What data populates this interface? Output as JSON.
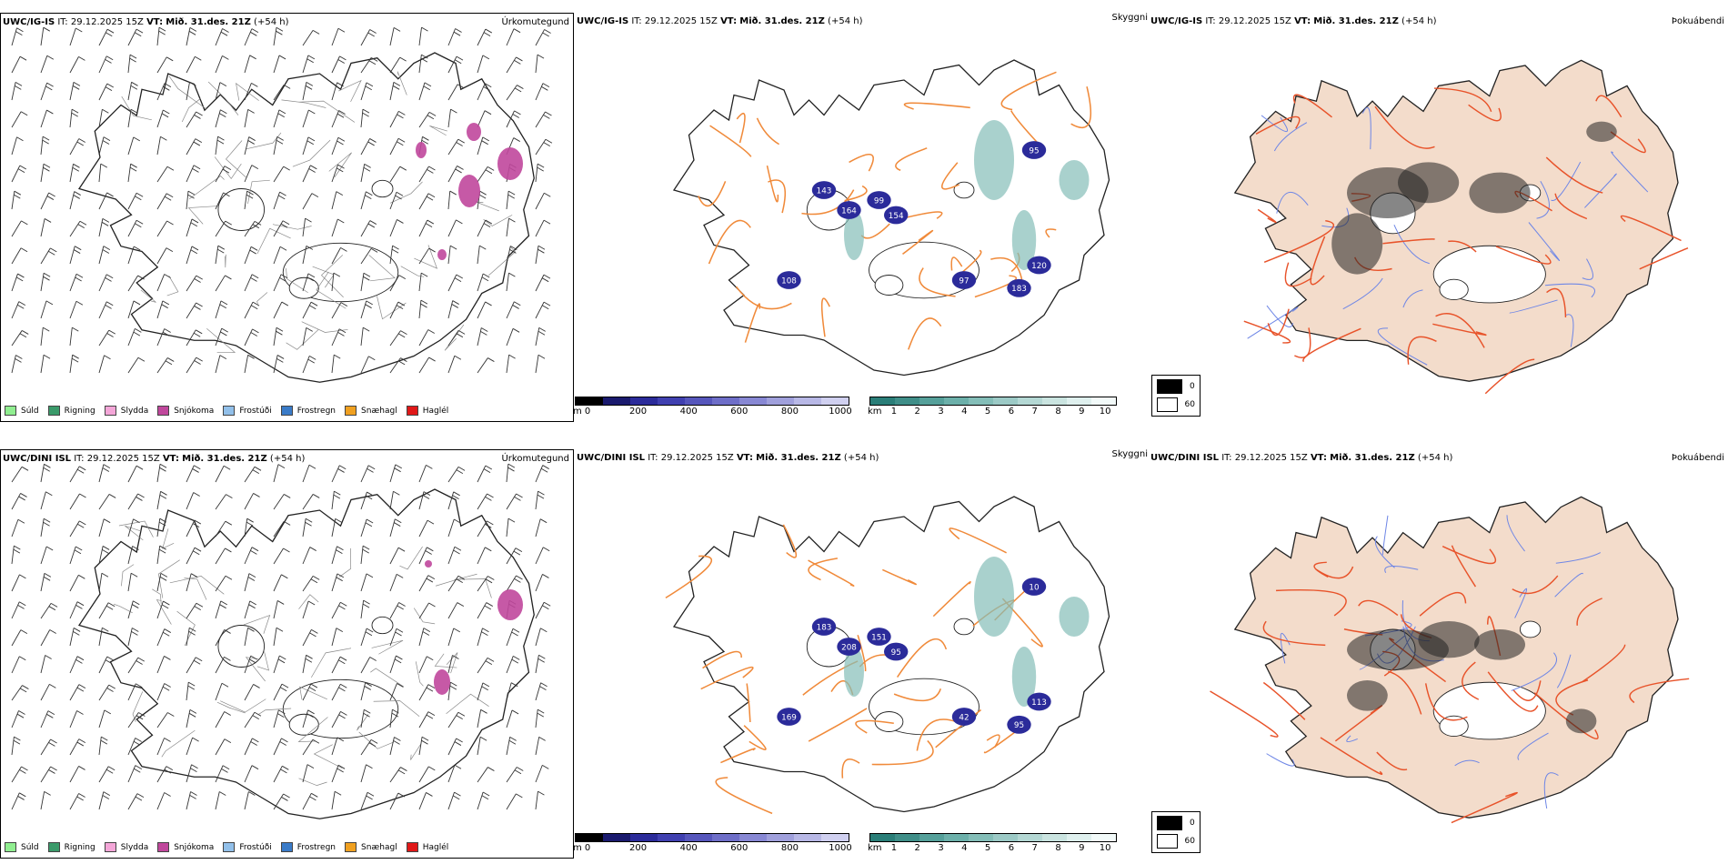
{
  "rows": [
    {
      "precip": {
        "model": "UWC/IG-IS",
        "it_label": "IT:",
        "it_value": "29.12.2025 15Z",
        "vt_label": "VT:",
        "vt_value": "Mið. 31.des. 21Z",
        "lead": "(+54 h)",
        "title_right": "Úrkomutegund"
      },
      "visibility": {
        "model": "UWC/IG-IS",
        "it_label": "IT:",
        "it_value": "29.12.2025 15Z",
        "vt_label": "VT:",
        "vt_value": "Mið. 31.des. 21Z",
        "lead": "(+54 h)",
        "title_right": "Skyggni",
        "labels": [
          "143",
          "164",
          "99",
          "154",
          "95",
          "97",
          "120",
          "183",
          "108"
        ]
      },
      "fog": {
        "model": "UWC/IG-IS",
        "it_label": "IT:",
        "it_value": "29.12.2025 15Z",
        "vt_label": "VT:",
        "vt_value": "Mið. 31.des. 21Z",
        "lead": "(+54 h)",
        "title_right": "Þokuábendi"
      }
    },
    {
      "precip": {
        "model": "UWC/DINI ISL",
        "it_label": "IT:",
        "it_value": "29.12.2025 15Z",
        "vt_label": "VT:",
        "vt_value": "Mið. 31.des. 21Z",
        "lead": "(+54 h)",
        "title_right": "Úrkomutegund"
      },
      "visibility": {
        "model": "UWC/DINI ISL",
        "it_label": "IT:",
        "it_value": "29.12.2025 15Z",
        "vt_label": "VT:",
        "vt_value": "Mið. 31.des. 21Z",
        "lead": "(+54 h)",
        "title_right": "Skyggni",
        "labels": [
          "183",
          "208",
          "151",
          "95",
          "10",
          "42",
          "113",
          "95",
          "169"
        ]
      },
      "fog": {
        "model": "UWC/DINI ISL",
        "it_label": "IT:",
        "it_value": "29.12.2025 15Z",
        "vt_label": "VT:",
        "vt_value": "Mið. 31.des. 21Z",
        "lead": "(+54 h)",
        "title_right": "Þokuábendi"
      }
    }
  ],
  "precip_legend": [
    {
      "label": "Súld",
      "color": "#90ee90"
    },
    {
      "label": "Rigning",
      "color": "#3a9a6a"
    },
    {
      "label": "Slydda",
      "color": "#f4a6d8"
    },
    {
      "label": "Snjókoma",
      "color": "#c0479c"
    },
    {
      "label": "Frostúði",
      "color": "#92c0ea"
    },
    {
      "label": "Frostregn",
      "color": "#3a7bc8"
    },
    {
      "label": "Snæhagl",
      "color": "#f0a020"
    },
    {
      "label": "Haglél",
      "color": "#e01818"
    }
  ],
  "ceiling_scale": {
    "unit": "m",
    "ticks": [
      "0",
      "200",
      "400",
      "600",
      "800",
      "1000"
    ],
    "colors": [
      "#000000",
      "#1a1a6e",
      "#2b2b9a",
      "#4040b0",
      "#5656bc",
      "#6e6ec8",
      "#8888d4",
      "#a0a0dc",
      "#b8b8e6",
      "#d0d0f0"
    ]
  },
  "visibility_scale": {
    "unit": "km",
    "ticks": [
      "1",
      "2",
      "3",
      "4",
      "5",
      "6",
      "7",
      "8",
      "9",
      "10"
    ],
    "colors": [
      "#2a7e78",
      "#3f8e88",
      "#55a09a",
      "#6cb0aa",
      "#84beb8",
      "#9ccac6",
      "#b4d8d4",
      "#cae4e0",
      "#dff0ee",
      "#f2faf9"
    ]
  },
  "fog_scale": {
    "items": [
      {
        "label": "0",
        "color": "#000000"
      },
      {
        "label": "60",
        "color": "#ffffff"
      }
    ]
  },
  "colors": {
    "roads": "#f08a3a",
    "land_fog": "#f3dccb",
    "fog_roads": "#e8532a",
    "rivers": "#6e86e6"
  }
}
